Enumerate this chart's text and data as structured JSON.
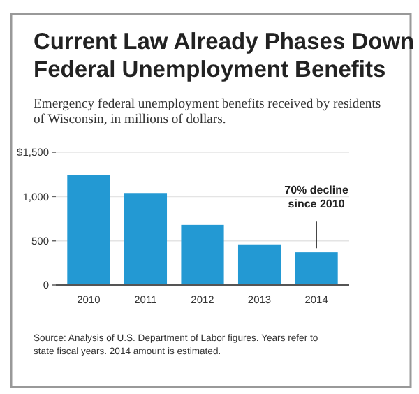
{
  "chart_data": {
    "type": "bar",
    "title": "Current Law Already Phases Down Federal Unemployment Benefits",
    "subtitle": "Emergency federal unemployment benefits received by residents of Wisconsin, in millions of dollars.",
    "categories": [
      "2010",
      "2011",
      "2012",
      "2013",
      "2014"
    ],
    "values": [
      1240,
      1040,
      680,
      460,
      370
    ],
    "color": "#2399d3",
    "ylim": [
      0,
      1500
    ],
    "yticks": [
      {
        "value": 0,
        "label": "0"
      },
      {
        "value": 500,
        "label": "500"
      },
      {
        "value": 1000,
        "label": "1,000"
      },
      {
        "value": 1500,
        "label": "$1,500"
      }
    ],
    "grid": "y",
    "annotations": [
      {
        "text": "70% decline since 2010",
        "x": "2014",
        "y": 370
      },
      "Source: Analysis of U.S. Department of Labor figures. Years refer to state fiscal years. 2014 amount is estimated."
    ]
  }
}
